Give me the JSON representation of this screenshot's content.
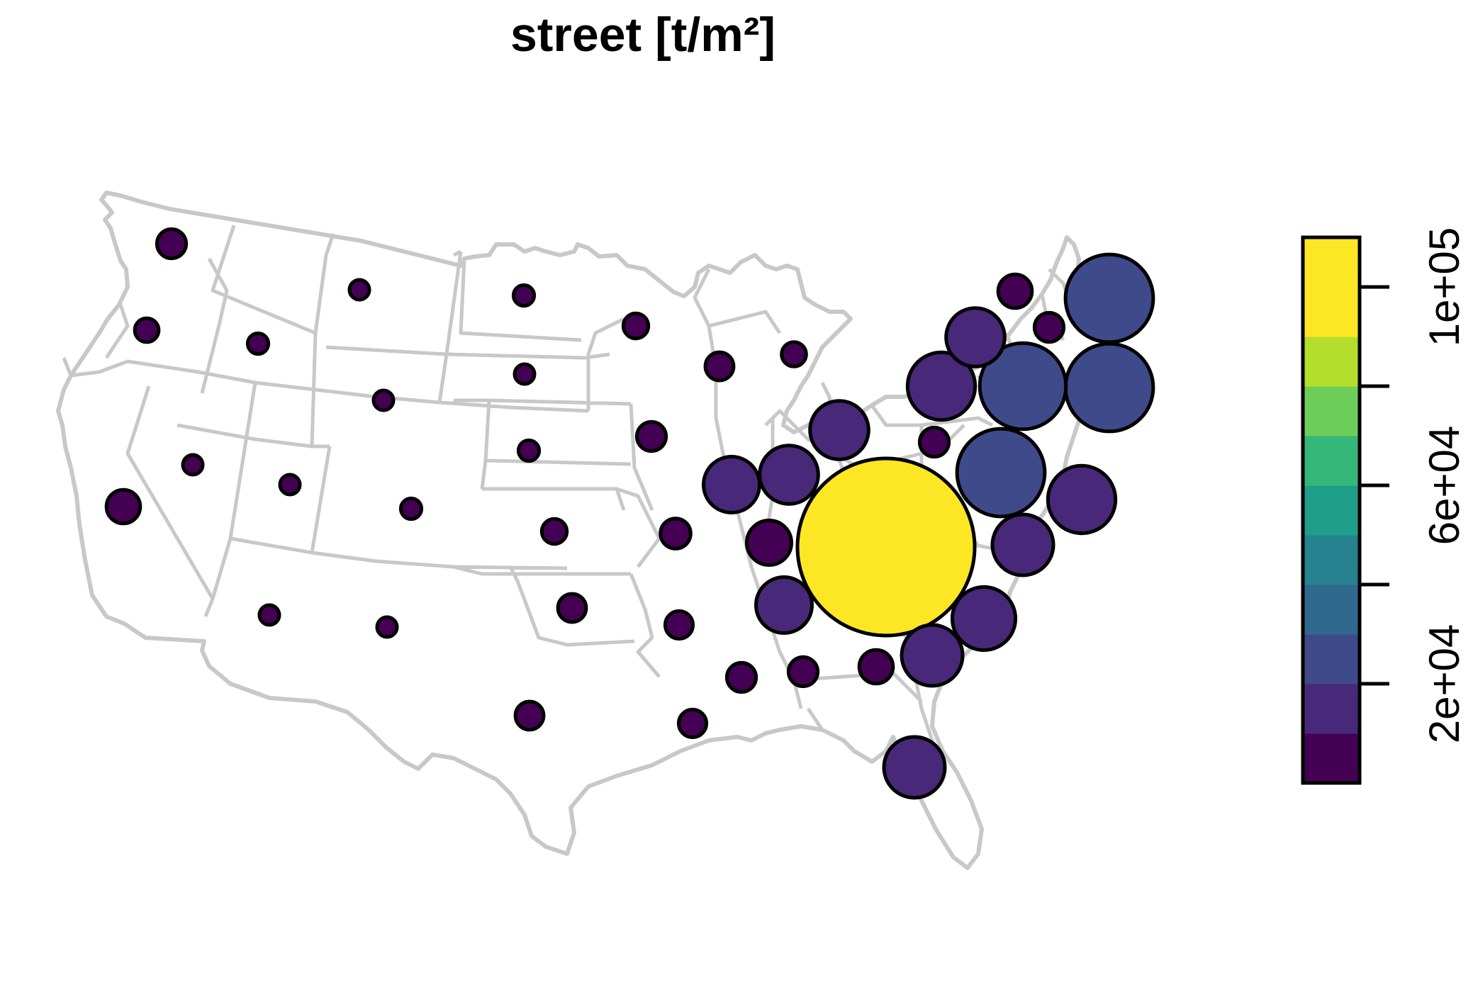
{
  "title": "street [t/m²]",
  "legend": {
    "tick_labels": [
      "2e+04",
      "6e+04",
      "1e+05"
    ],
    "ticks": [
      20000,
      60000,
      100000
    ],
    "range": [
      0,
      110000
    ],
    "bin_width": 10000,
    "palette": [
      "#440154",
      "#482878",
      "#3E4A89",
      "#31688E",
      "#26828E",
      "#1F9E89",
      "#35B779",
      "#6DCD59",
      "#B4DE2C",
      "#FDE725"
    ],
    "placement": "right"
  },
  "colors": {
    "state_border": "#c8c8c8",
    "bubble_outline": "#000000"
  },
  "chart_data": {
    "type": "proportional-symbol-map",
    "variable_label": "street [t/m²]",
    "region": "contiguous United States",
    "states": [
      {
        "state": "Washington",
        "value": 3000
      },
      {
        "state": "Oregon",
        "value": 2000
      },
      {
        "state": "California",
        "value": 4000
      },
      {
        "state": "Idaho",
        "value": 1500
      },
      {
        "state": "Nevada",
        "value": 500
      },
      {
        "state": "Montana",
        "value": 800
      },
      {
        "state": "Wyoming",
        "value": 800
      },
      {
        "state": "Utah",
        "value": 900
      },
      {
        "state": "Arizona",
        "value": 1200
      },
      {
        "state": "Colorado",
        "value": 1500
      },
      {
        "state": "New Mexico",
        "value": 1300
      },
      {
        "state": "North Dakota",
        "value": 1500
      },
      {
        "state": "South Dakota",
        "value": 1300
      },
      {
        "state": "Nebraska",
        "value": 1500
      },
      {
        "state": "Kansas",
        "value": 2200
      },
      {
        "state": "Oklahoma",
        "value": 2800
      },
      {
        "state": "Texas",
        "value": 2800
      },
      {
        "state": "Minnesota",
        "value": 2200
      },
      {
        "state": "Iowa",
        "value": 3000
      },
      {
        "state": "Missouri",
        "value": 3200
      },
      {
        "state": "Arkansas",
        "value": 2700
      },
      {
        "state": "Louisiana",
        "value": 2700
      },
      {
        "state": "Wisconsin",
        "value": 2800
      },
      {
        "state": "Michigan",
        "value": 2100
      },
      {
        "state": "Illinois",
        "value": 11000
      },
      {
        "state": "Indiana",
        "value": 12000
      },
      {
        "state": "Ohio",
        "value": 12000
      },
      {
        "state": "Kentucky",
        "value": 7000
      },
      {
        "state": "Tennessee",
        "value": 11000
      },
      {
        "state": "Mississippi",
        "value": 3000
      },
      {
        "state": "Alabama",
        "value": 3000
      },
      {
        "state": "Georgia",
        "value": 4000
      },
      {
        "state": "Florida",
        "value": 13000
      },
      {
        "state": "South Carolina",
        "value": 13000
      },
      {
        "state": "North Carolina",
        "value": 14000
      },
      {
        "state": "Virginia",
        "value": 13000
      },
      {
        "state": "West Virginia",
        "value": 110000
      },
      {
        "state": "Maryland",
        "value": 27000
      },
      {
        "state": "Delaware",
        "value": 16000
      },
      {
        "state": "Pennsylvania",
        "value": 3000
      },
      {
        "state": "New Jersey",
        "value": 16000
      },
      {
        "state": "New York",
        "value": 26000
      },
      {
        "state": "Connecticut",
        "value": 27000
      },
      {
        "state": "Massachusetts",
        "value": 27000
      },
      {
        "state": "Vermont",
        "value": 12000
      },
      {
        "state": "New Hampshire",
        "value": 3000
      },
      {
        "state": "Maine",
        "value": 4000
      }
    ]
  }
}
